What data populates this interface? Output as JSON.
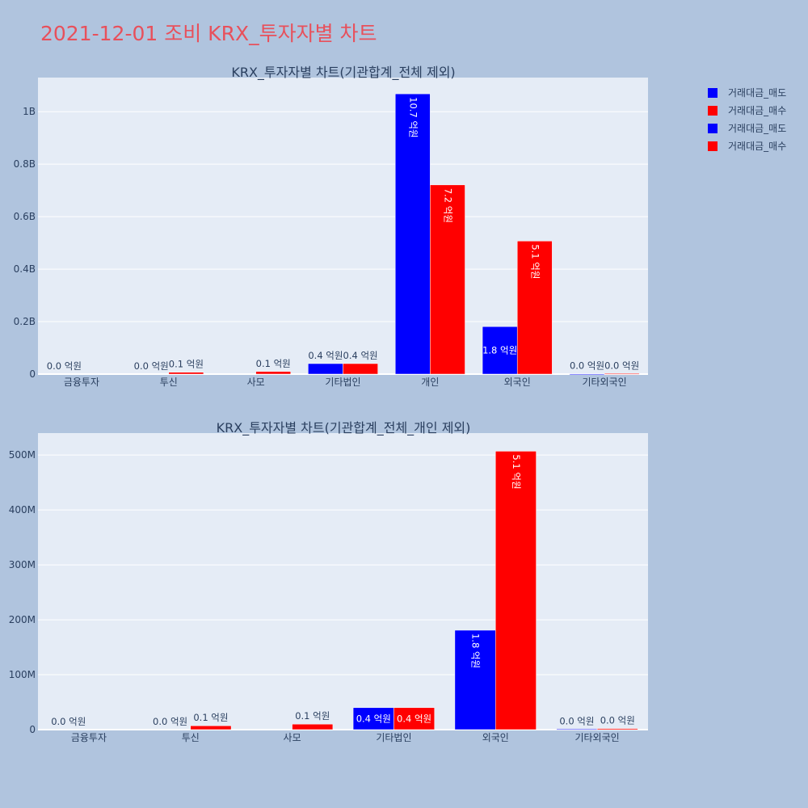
{
  "page_title": "2021-12-01 조비 KRX_투자자별 차트",
  "colors": {
    "sell": "#0000ff",
    "buy": "#ff0000",
    "plot_bg": "#e5ecf6",
    "page_bg": "#b0c4de",
    "title": "#e8505b"
  },
  "legend": [
    {
      "label": "거래대금_매도",
      "color": "#0000ff"
    },
    {
      "label": "거래대금_매수",
      "color": "#ff0000"
    },
    {
      "label": "거래대금_매도",
      "color": "#0000ff"
    },
    {
      "label": "거래대금_매수",
      "color": "#ff0000"
    }
  ],
  "chart_data": [
    {
      "type": "bar",
      "title": "KRX_투자자별 차트(기관합계_전체 제외)",
      "categories": [
        "금융투자",
        "투신",
        "사모",
        "기타법인",
        "개인",
        "외국인",
        "기타외국인"
      ],
      "ylim": [
        0,
        1130000000
      ],
      "yticks": [
        0,
        200000000,
        400000000,
        600000000,
        800000000,
        1000000000
      ],
      "ytick_labels": [
        "0",
        "0.2B",
        "0.4B",
        "0.6B",
        "0.8B",
        "1B"
      ],
      "series": [
        {
          "name": "거래대금_매도",
          "color": "#0000ff",
          "values": [
            0,
            0,
            0,
            40000000,
            1068000000,
            181000000,
            1000000
          ],
          "labels": [
            "0.0 억원",
            "0.0 억원",
            "",
            "0.4 억원",
            "10.7 억원",
            "1.8 억원",
            "0.0 억원"
          ]
        },
        {
          "name": "거래대금_매수",
          "color": "#ff0000",
          "values": [
            0,
            7000000,
            10000000,
            40000000,
            721000000,
            507000000,
            2000000
          ],
          "labels": [
            "",
            "0.1 억원",
            "0.1 억원",
            "0.4 억원",
            "7.2 억원",
            "5.1 억원",
            "0.0 억원"
          ]
        }
      ]
    },
    {
      "type": "bar",
      "title": "KRX_투자자별 차트(기관합계_전체_개인 제외)",
      "categories": [
        "금융투자",
        "투신",
        "사모",
        "기타법인",
        "외국인",
        "기타외국인"
      ],
      "ylim": [
        0,
        540000000
      ],
      "yticks": [
        0,
        100000000,
        200000000,
        300000000,
        400000000,
        500000000
      ],
      "ytick_labels": [
        "0",
        "100M",
        "200M",
        "300M",
        "400M",
        "500M"
      ],
      "series": [
        {
          "name": "거래대금_매도",
          "color": "#0000ff",
          "values": [
            0,
            0,
            0,
            40000000,
            181000000,
            1000000
          ],
          "labels": [
            "0.0 억원",
            "0.0 억원",
            "",
            "0.4 억원",
            "1.8 억원",
            "0.0 억원"
          ]
        },
        {
          "name": "거래대금_매수",
          "color": "#ff0000",
          "values": [
            0,
            7000000,
            10000000,
            40000000,
            507000000,
            2000000
          ],
          "labels": [
            "",
            "0.1 억원",
            "0.1 억원",
            "0.4 억원",
            "5.1 억원",
            "0.0 억원"
          ]
        }
      ]
    }
  ]
}
